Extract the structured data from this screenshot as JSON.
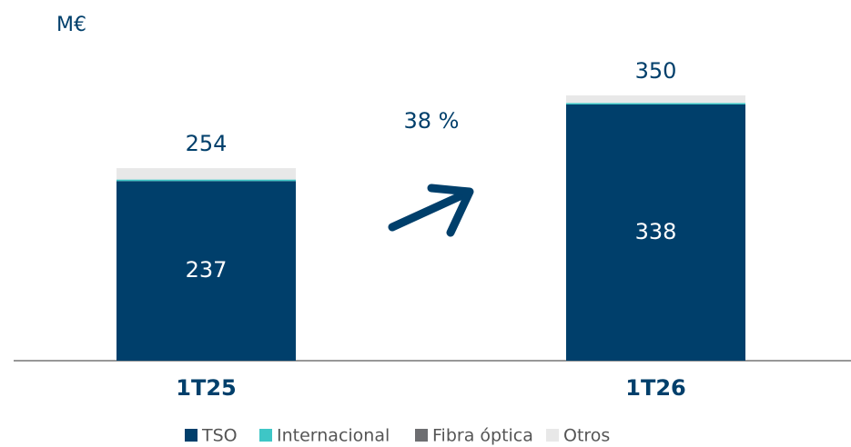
{
  "chart_data": {
    "type": "stacked_bar",
    "unit_label": "M€",
    "categories": [
      "1T25",
      "1T26"
    ],
    "series": [
      {
        "name": "TSO",
        "color": "#003f6b",
        "values": [
          237,
          338
        ]
      },
      {
        "name": "Internacional",
        "color": "#3ec6c6",
        "values": [
          2,
          2
        ]
      },
      {
        "name": "Fibra óptica",
        "color": "#6d6e71",
        "values": [
          0,
          0
        ]
      },
      {
        "name": "Otros",
        "color": "#e8e8e8",
        "values": [
          15,
          10
        ]
      }
    ],
    "totals": [
      254,
      350
    ],
    "annotation": "38 %",
    "legend": "bottom"
  }
}
